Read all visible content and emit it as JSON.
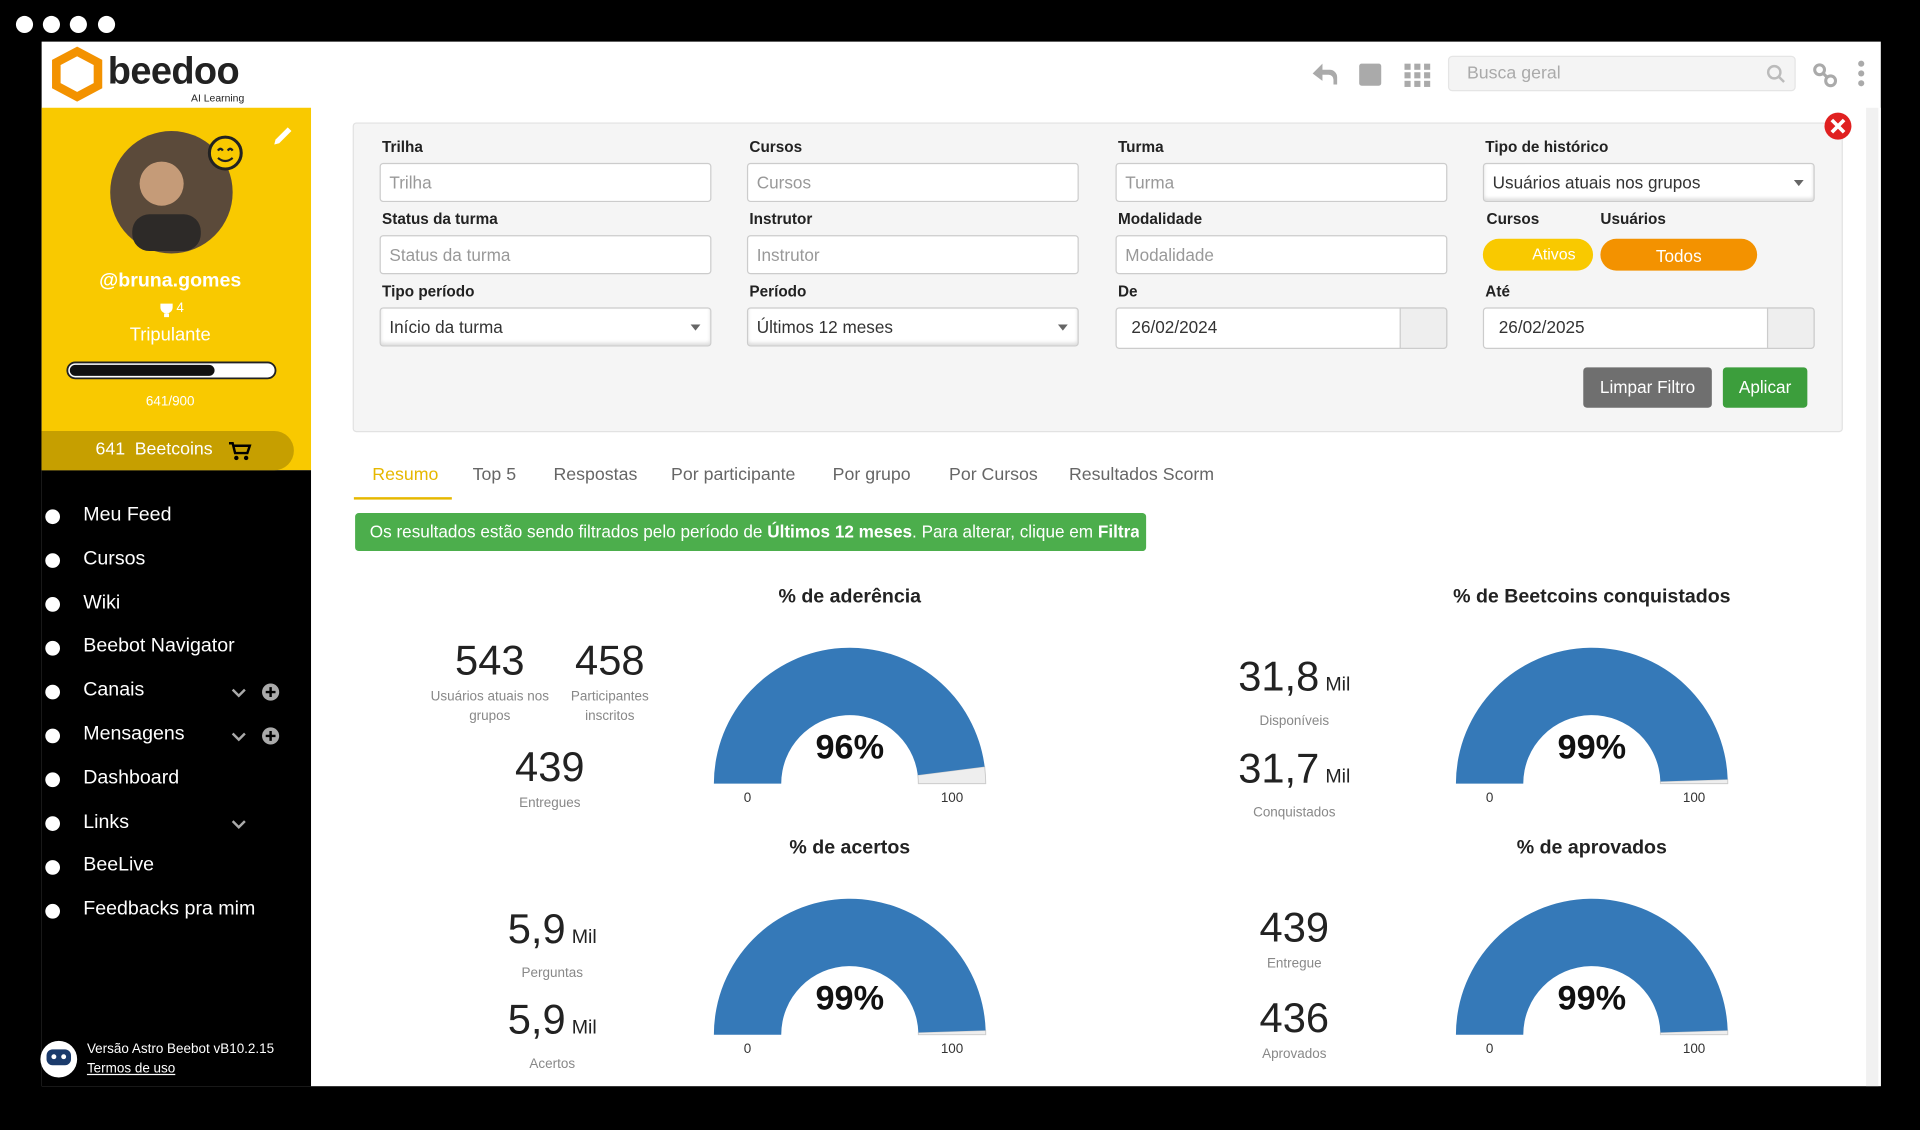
{
  "header": {
    "logo": "beedoo",
    "logo_sub": "AI Learning",
    "search_placeholder": "Busca geral"
  },
  "profile": {
    "username": "@bruna.gomes",
    "trophies": 4,
    "role": "Tripulante",
    "progress": 641,
    "progress_max": 900,
    "progress_label": "641/900",
    "coins": 641,
    "coins_label": "Beetcoins"
  },
  "menu": [
    "Meu Feed",
    "Cursos",
    "Wiki",
    "Beebot Navigator",
    "Canais",
    "Mensagens",
    "Dashboard",
    "Links",
    "BeeLive",
    "Feedbacks pra mim"
  ],
  "footer": {
    "version": "Versão Astro Beebot vB10.2.15",
    "terms": "Termos de uso"
  },
  "filters": {
    "inputs": [
      {
        "label": "Trilha",
        "placeholder": "Trilha"
      },
      {
        "label": "Cursos",
        "placeholder": "Cursos"
      },
      {
        "label": "Turma",
        "placeholder": "Turma"
      },
      {
        "label": "Status da turma",
        "placeholder": "Status da turma"
      },
      {
        "label": "Instrutor",
        "placeholder": "Instrutor"
      },
      {
        "label": "Modalidade",
        "placeholder": "Modalidade"
      }
    ],
    "selects": [
      {
        "label": "Tipo de histórico",
        "value": "Usuários atuais nos grupos"
      },
      {
        "label": "Tipo período",
        "value": "Início da turma"
      },
      {
        "label": "Período",
        "value": "Últimos 12 meses"
      }
    ],
    "dates": [
      {
        "label": "De",
        "value": "26/02/2024"
      },
      {
        "label": "Até",
        "value": "26/02/2025"
      }
    ],
    "toggles": [
      {
        "label": "Cursos",
        "option": "Ativos"
      },
      {
        "label": "Usuários",
        "option": "Todos"
      }
    ],
    "buttons": [
      "Limpar Filtro",
      "Aplicar"
    ]
  },
  "tabs": [
    "Resumo",
    "Top 5",
    "Respostas",
    "Por participante",
    "Por grupo",
    "Por Cursos",
    "Resultados Scorm"
  ],
  "banner": {
    "text_1": "Os resultados estão sendo filtrados pelo período de ",
    "bold_1": "Últimos 12 meses",
    "text_2": ". Para alterar, clique em ",
    "bold_2": "Filtrar"
  },
  "panels": [
    {
      "title": "% de aderência",
      "gauge": {
        "value": 96,
        "value_label": "96%",
        "min": 0,
        "max": 100
      },
      "stats": [
        {
          "value": 543,
          "label": "Usuários atuais nos grupos"
        },
        {
          "value": 458,
          "label": "Participantes inscritos"
        },
        {
          "value": 439,
          "label": "Entregues"
        }
      ]
    },
    {
      "title": "% de Beetcoins conquistados",
      "gauge": {
        "value": 99,
        "value_label": "99%",
        "min": 0,
        "max": 100
      },
      "stats": [
        {
          "value": "31,8",
          "unit": "Mil",
          "label": "Disponíveis"
        },
        {
          "value": "31,7",
          "unit": "Mil",
          "label": "Conquistados"
        }
      ]
    },
    {
      "title": "% de acertos",
      "gauge": {
        "value": 99,
        "value_label": "99%",
        "min": 0,
        "max": 100
      },
      "stats": [
        {
          "value": "5,9",
          "unit": "Mil",
          "label": "Perguntas"
        },
        {
          "value": "5,9",
          "unit": "Mil",
          "label": "Acertos"
        }
      ]
    },
    {
      "title": "% de aprovados",
      "gauge": {
        "value": 99,
        "value_label": "99%",
        "min": 0,
        "max": 100
      },
      "stats": [
        {
          "value": 439,
          "label": "Entregue"
        },
        {
          "value": 436,
          "label": "Aprovados"
        }
      ]
    }
  ]
}
